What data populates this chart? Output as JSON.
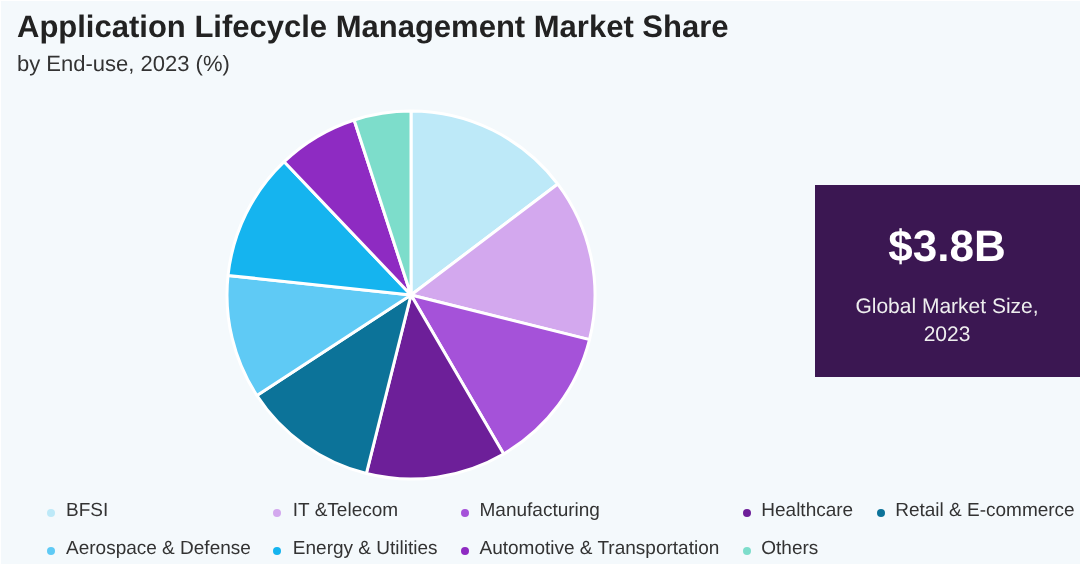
{
  "chart_data": {
    "type": "pie",
    "title": "Application Lifecycle Management Market Share",
    "subtitle": "by End-use, 2023 (%)",
    "categories": [
      "BFSI",
      "IT &Telecom",
      "Manufacturing",
      "Healthcare",
      "Retail & E-commerce",
      "Aerospace & Defense",
      "Energy & Utilities",
      "Automotive & Transportation",
      "Others"
    ],
    "values": [
      14.7,
      14.2,
      12.7,
      12.3,
      11.9,
      10.9,
      11.2,
      7.1,
      5.0
    ],
    "colors": [
      "#bde9f8",
      "#d3a8ee",
      "#a552d9",
      "#6d1f99",
      "#0c7399",
      "#5fcaf5",
      "#15b4ef",
      "#8e2bc2",
      "#7dddcb"
    ],
    "annotations": [
      "$3.8B",
      "Global Market Size, 2023"
    ],
    "legend": "bottom"
  }
}
